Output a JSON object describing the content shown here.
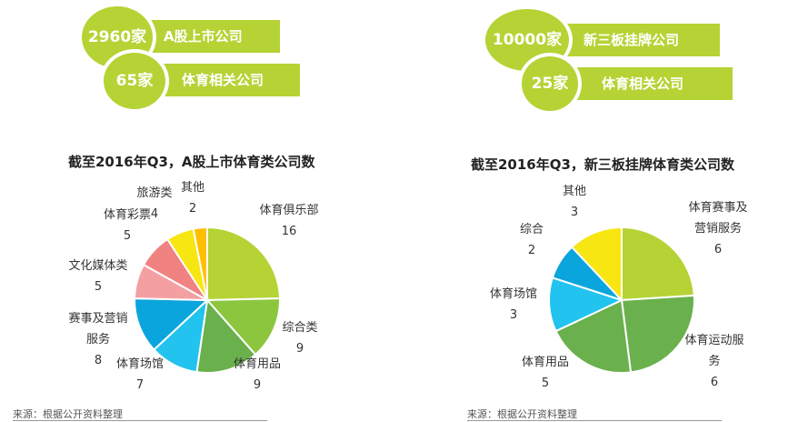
{
  "banners": {
    "left": {
      "row1": {
        "count": "2960家",
        "label": "A股上市公司"
      },
      "row2": {
        "count": "65家",
        "label": "体育相关公司"
      }
    },
    "right": {
      "row1": {
        "count": "10000家",
        "label": "新三板挂牌公司"
      },
      "row2": {
        "count": "25家",
        "label": "体育相关公司"
      }
    }
  },
  "chart_data": [
    {
      "type": "pie",
      "title": "截至2016年Q3，A股上市体育类公司数",
      "slices": [
        {
          "name": "体育俱乐部",
          "value": 16,
          "color": "#b5d334"
        },
        {
          "name": "综合类",
          "value": 9,
          "color": "#8cc63f"
        },
        {
          "name": "体育用品",
          "value": 9,
          "color": "#6ab04c"
        },
        {
          "name": "体育场馆",
          "value": 7,
          "color": "#22c3ee"
        },
        {
          "name": "赛事及营销服务",
          "value": 8,
          "color": "#0aa5dc"
        },
        {
          "name": "文化媒体类",
          "value": 5,
          "color": "#f4a0a3"
        },
        {
          "name": "体育彩票",
          "value": 5,
          "color": "#f08282"
        },
        {
          "name": "旅游类",
          "value": 4,
          "color": "#f7e612"
        },
        {
          "name": "其他",
          "value": 2,
          "color": "#ffc000"
        }
      ]
    },
    {
      "type": "pie",
      "title": "截至2016年Q3，新三板挂牌体育类公司数",
      "slices": [
        {
          "name": "体育赛事及营销服务",
          "value": 6,
          "color": "#b5d334"
        },
        {
          "name": "体育运动服务",
          "value": 6,
          "color": "#6ab04c"
        },
        {
          "name": "体育用品",
          "value": 5,
          "color": "#6ab04c"
        },
        {
          "name": "体育场馆",
          "value": 3,
          "color": "#22c3ee"
        },
        {
          "name": "综合",
          "value": 2,
          "color": "#0aa5dc"
        },
        {
          "name": "其他",
          "value": 3,
          "color": "#f7e612"
        }
      ]
    }
  ],
  "labels": {
    "left": [
      {
        "lines": [
          "体育俱乐部"
        ],
        "value": "16"
      },
      {
        "lines": [
          "综合类"
        ],
        "value": "9"
      },
      {
        "lines": [
          "体育用品"
        ],
        "value": "9"
      },
      {
        "lines": [
          "体育场馆"
        ],
        "value": "7"
      },
      {
        "lines": [
          "赛事及营销",
          "服务"
        ],
        "value": "8"
      },
      {
        "lines": [
          "文化媒体类"
        ],
        "value": "5"
      },
      {
        "lines": [
          "体育彩票"
        ],
        "value": "5"
      },
      {
        "lines": [
          "旅游类"
        ],
        "value": "4"
      },
      {
        "lines": [
          "其他"
        ],
        "value": "2"
      }
    ],
    "right": [
      {
        "lines": [
          "体育赛事及",
          "营销服务"
        ],
        "value": "6"
      },
      {
        "lines": [
          "体育运动服",
          "务"
        ],
        "value": "6"
      },
      {
        "lines": [
          "体育用品"
        ],
        "value": "5"
      },
      {
        "lines": [
          "体育场馆"
        ],
        "value": "3"
      },
      {
        "lines": [
          "综合"
        ],
        "value": "2"
      },
      {
        "lines": [
          "其他"
        ],
        "value": "3"
      }
    ]
  },
  "source": {
    "left": "来源：根据公开资料整理",
    "right": "来源：根据公开资料整理"
  }
}
